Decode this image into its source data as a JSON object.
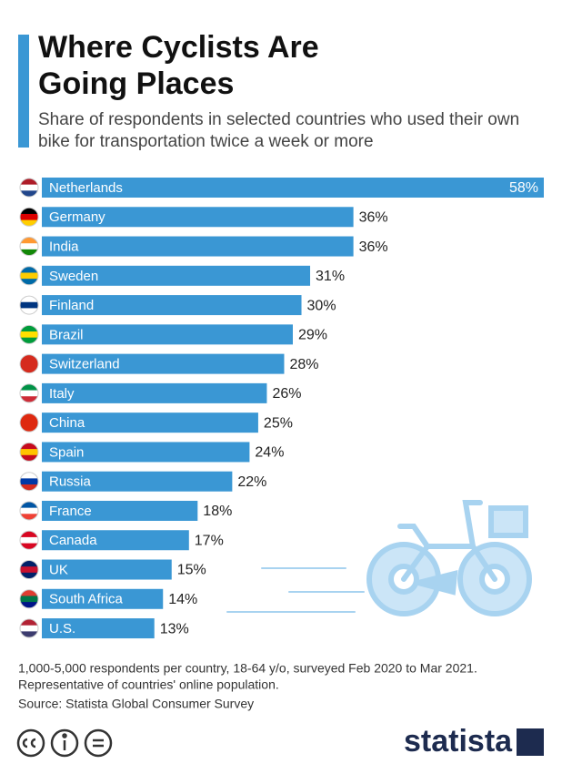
{
  "chart_data": {
    "type": "bar",
    "title": "Where Cyclists Are Going Places",
    "subtitle": "Share of respondents in selected countries who used their own bike for transportation twice a week or more",
    "categories": [
      "Netherlands",
      "Germany",
      "India",
      "Sweden",
      "Finland",
      "Brazil",
      "Switzerland",
      "Italy",
      "China",
      "Spain",
      "Russia",
      "France",
      "Canada",
      "UK",
      "South Africa",
      "U.S."
    ],
    "values": [
      58,
      36,
      36,
      31,
      30,
      29,
      28,
      26,
      25,
      24,
      22,
      18,
      17,
      15,
      14,
      13
    ],
    "value_labels": [
      "58%",
      "36%",
      "36%",
      "31%",
      "30%",
      "29%",
      "28%",
      "26%",
      "25%",
      "24%",
      "22%",
      "18%",
      "17%",
      "15%",
      "14%",
      "13%"
    ],
    "color": "#3a97d4",
    "notes": [
      "1,000-5,000 respondents per country, 18-64 y/o, surveyed Feb 2020 to Mar 2021.",
      "Representative of countries' online population."
    ],
    "source": "Source: Statista Global Consumer Survey",
    "logo": "statista"
  }
}
